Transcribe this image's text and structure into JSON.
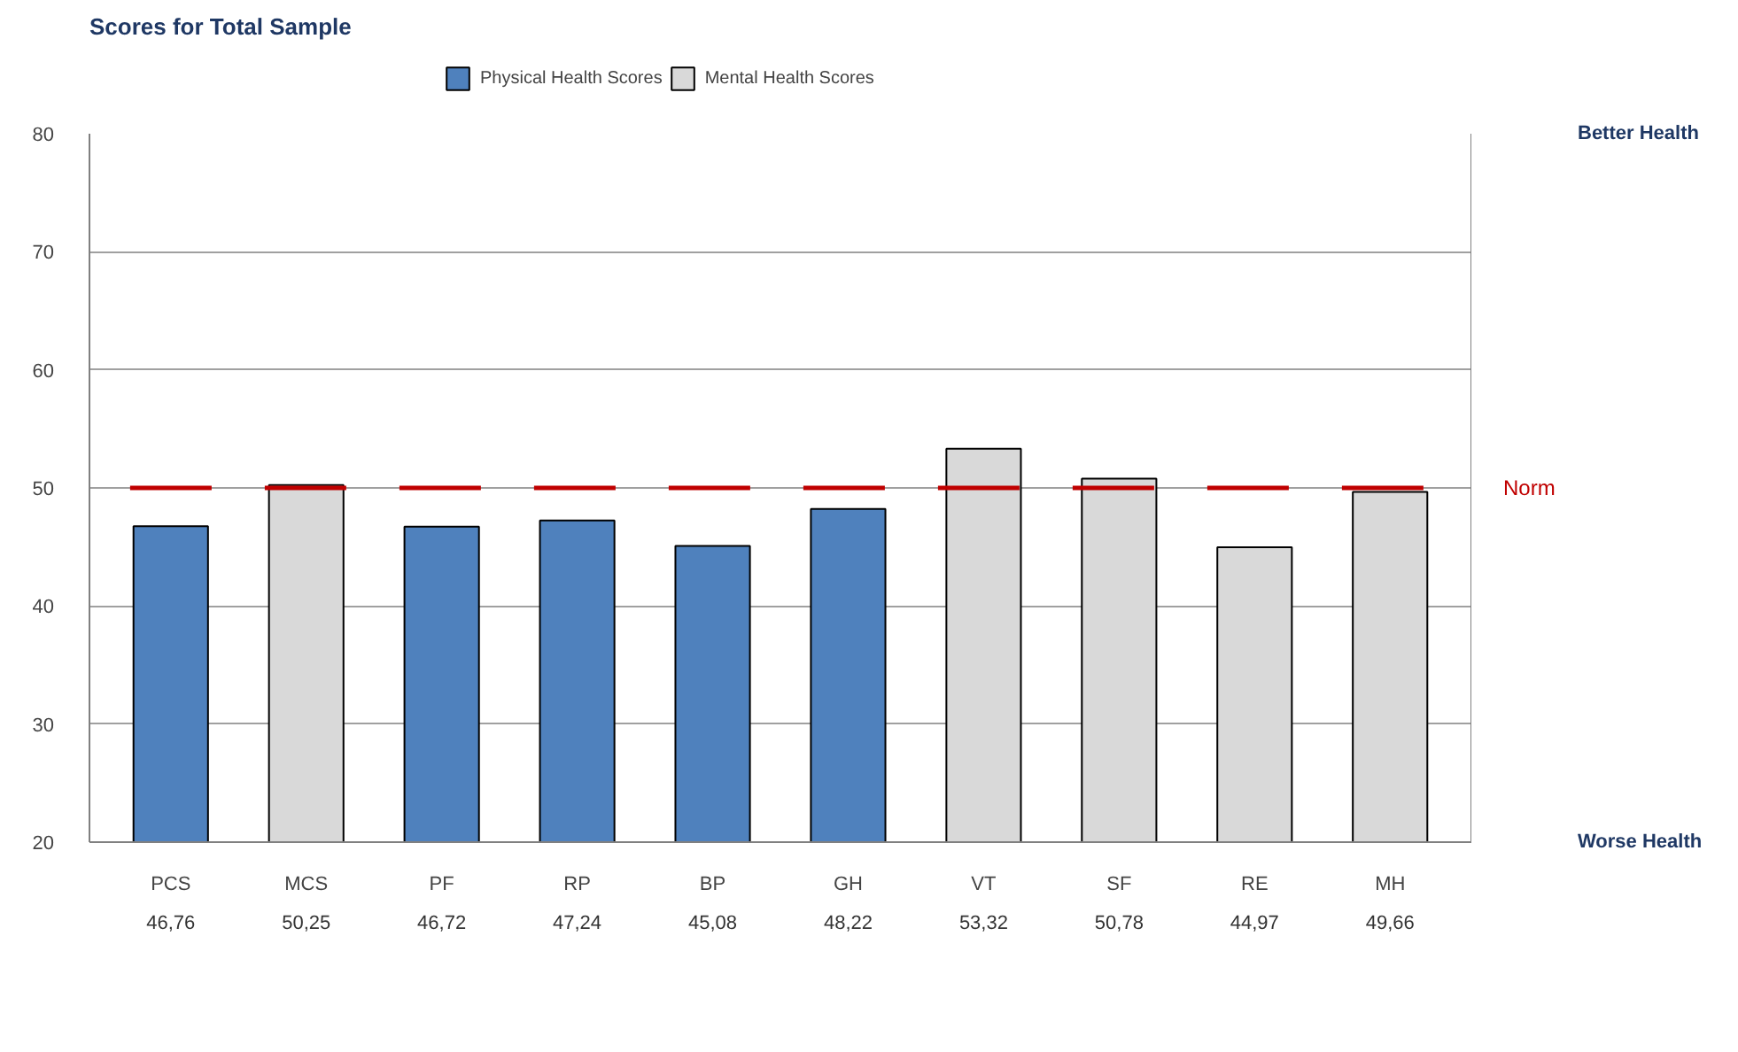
{
  "chart_data": {
    "type": "bar",
    "title": "Scores for Total Sample",
    "categories": [
      "PCS",
      "MCS",
      "PF",
      "RP",
      "BP",
      "GH",
      "VT",
      "SF",
      "RE",
      "MH"
    ],
    "series": [
      {
        "name": "Physical Health Scores",
        "color": "#4f81bd",
        "values": [
          46.76,
          null,
          46.72,
          47.24,
          45.08,
          48.22,
          null,
          null,
          null,
          null
        ]
      },
      {
        "name": "Mental Health Scores",
        "color": "#d9d9d9",
        "values": [
          null,
          50.25,
          null,
          null,
          null,
          null,
          53.32,
          50.78,
          44.97,
          49.66
        ]
      }
    ],
    "value_labels": [
      "46,76",
      "50,25",
      "46,72",
      "47,24",
      "45,08",
      "48,22",
      "53,32",
      "50,78",
      "44,97",
      "49,66"
    ],
    "ylim": [
      20,
      80
    ],
    "yticks": [
      20,
      30,
      40,
      50,
      60,
      70,
      80
    ],
    "grid": "y",
    "legend": "top",
    "ref_lines": [
      {
        "axis": "y",
        "value": 50,
        "label": "Norm",
        "color": "#c00000"
      }
    ],
    "annotations": [
      "Better Health",
      "Worse Health"
    ]
  }
}
